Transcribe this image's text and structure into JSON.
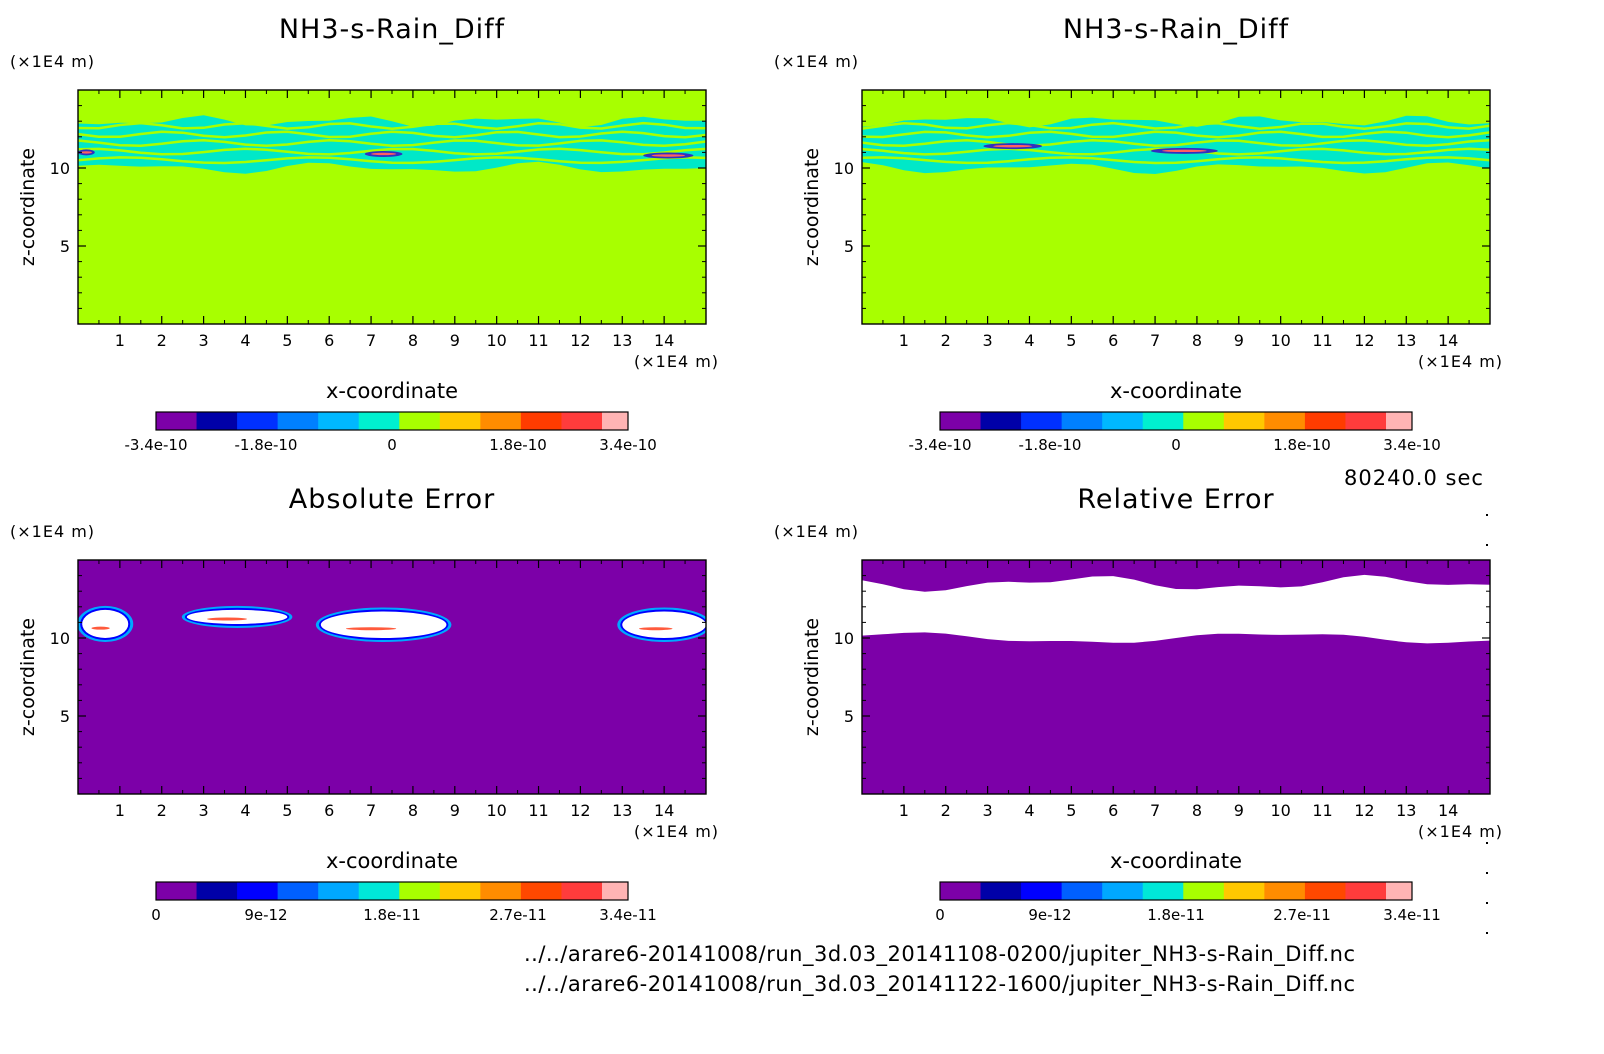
{
  "figure": {
    "time_label": "80240.0 sec",
    "files": [
      "../../arare6-20141008/run_3d.03_20141108-0200/jupiter_NH3-s-Rain_Diff.nc",
      "../../arare6-20141008/run_3d.03_20141122-1600/jupiter_NH3-s-Rain_Diff.nc"
    ]
  },
  "panels": [
    {
      "title": "NH3-s-Rain_Diff",
      "x_unit": "(×1E4 m)",
      "z_unit": "(×1E4 m)",
      "xlabel": "x-coordinate",
      "ylabel": "z-coordinate",
      "xticks": [
        "1",
        "2",
        "3",
        "4",
        "5",
        "6",
        "7",
        "8",
        "9",
        "10",
        "11",
        "12",
        "13",
        "14"
      ],
      "yticks": [
        "5",
        "10"
      ],
      "colorbar_labels": [
        "-3.4e-10",
        "-1.8e-10",
        "0",
        "1.8e-10",
        "3.4e-10"
      ]
    },
    {
      "title": "NH3-s-Rain_Diff",
      "x_unit": "(×1E4 m)",
      "z_unit": "(×1E4 m)",
      "xlabel": "x-coordinate",
      "ylabel": "z-coordinate",
      "xticks": [
        "1",
        "2",
        "3",
        "4",
        "5",
        "6",
        "7",
        "8",
        "9",
        "10",
        "11",
        "12",
        "13",
        "14"
      ],
      "yticks": [
        "5",
        "10"
      ],
      "colorbar_labels": [
        "-3.4e-10",
        "-1.8e-10",
        "0",
        "1.8e-10",
        "3.4e-10"
      ]
    },
    {
      "title": "Absolute Error",
      "x_unit": "(×1E4 m)",
      "z_unit": "(×1E4 m)",
      "xlabel": "x-coordinate",
      "ylabel": "z-coordinate",
      "xticks": [
        "1",
        "2",
        "3",
        "4",
        "5",
        "6",
        "7",
        "8",
        "9",
        "10",
        "11",
        "12",
        "13",
        "14"
      ],
      "yticks": [
        "5",
        "10"
      ],
      "colorbar_labels": [
        "0",
        "9e-12",
        "1.8e-11",
        "2.7e-11",
        "3.4e-11"
      ]
    },
    {
      "title": "Relative Error",
      "x_unit": "(×1E4 m)",
      "z_unit": "(×1E4 m)",
      "xlabel": "x-coordinate",
      "ylabel": "z-coordinate",
      "xticks": [
        "1",
        "2",
        "3",
        "4",
        "5",
        "6",
        "7",
        "8",
        "9",
        "10",
        "11",
        "12",
        "13",
        "14"
      ],
      "yticks": [
        "5",
        "10"
      ],
      "colorbar_labels": [
        "0",
        "9e-12",
        "1.8e-11",
        "2.7e-11",
        "3.4e-11"
      ]
    }
  ],
  "colors": {
    "background_diff": "#a8ff00",
    "band_diff": "#00e8c8",
    "error_background": "#7c00a8",
    "error_blank": "#ffffff",
    "colorbar_diff": [
      "#7c00a8",
      "#0000a8",
      "#0030ff",
      "#0080ff",
      "#00b8ff",
      "#00f0d0",
      "#a8ff00",
      "#ffc800",
      "#ff8c00",
      "#ff3c00",
      "#ff3c3c",
      "#ffb4b4"
    ],
    "colorbar_error": [
      "#7c00a8",
      "#0000a8",
      "#0000ff",
      "#0060ff",
      "#00a8ff",
      "#00e8d8",
      "#a8ff00",
      "#ffc800",
      "#ff8c00",
      "#ff4800",
      "#ff3c3c",
      "#ffb4b4"
    ]
  },
  "chart_data": [
    {
      "type": "heatmap",
      "title": "NH3-s-Rain_Diff",
      "xlabel": "x-coordinate",
      "ylabel": "z-coordinate",
      "xlim": [
        0,
        15
      ],
      "ylim": [
        0,
        15
      ],
      "clim": [
        -3.4e-10,
        3.4e-10
      ],
      "colorbar_ticks": [
        -3.4e-10,
        -1.8e-10,
        0,
        1.8e-10,
        3.4e-10
      ],
      "features": {
        "band_z": [
          10,
          13
        ],
        "background_value": 0
      }
    },
    {
      "type": "heatmap",
      "title": "NH3-s-Rain_Diff",
      "xlabel": "x-coordinate",
      "ylabel": "z-coordinate",
      "xlim": [
        0,
        15
      ],
      "ylim": [
        0,
        15
      ],
      "clim": [
        -3.4e-10,
        3.4e-10
      ],
      "colorbar_ticks": [
        -3.4e-10,
        -1.8e-10,
        0,
        1.8e-10,
        3.4e-10
      ],
      "features": {
        "band_z": [
          10,
          13
        ],
        "background_value": 0
      }
    },
    {
      "type": "heatmap",
      "title": "Absolute Error",
      "xlabel": "x-coordinate",
      "ylabel": "z-coordinate",
      "xlim": [
        0,
        15
      ],
      "ylim": [
        0,
        15
      ],
      "clim": [
        0,
        3.4e-11
      ],
      "colorbar_ticks": [
        0,
        9e-12,
        1.8e-11,
        2.7e-11,
        3.4e-11
      ],
      "features": {
        "blobs": [
          {
            "x": [
              0.1,
              1.2
            ],
            "z": [
              10.0,
              11.8
            ]
          },
          {
            "x": [
              2.6,
              5.0
            ],
            "z": [
              10.9,
              11.8
            ]
          },
          {
            "x": [
              5.8,
              8.8
            ],
            "z": [
              10.0,
              11.7
            ]
          },
          {
            "x": [
              13.0,
              15.0
            ],
            "z": [
              10.0,
              11.7
            ]
          }
        ]
      }
    },
    {
      "type": "heatmap",
      "title": "Relative Error",
      "xlabel": "x-coordinate",
      "ylabel": "z-coordinate",
      "xlim": [
        0,
        15
      ],
      "ylim": [
        0,
        15
      ],
      "clim": [
        0,
        3.4e-11
      ],
      "colorbar_ticks": [
        0,
        9e-12,
        1.8e-11,
        2.7e-11,
        3.4e-11
      ],
      "features": {
        "blank_band_z": [
          10,
          13.5
        ]
      }
    }
  ]
}
